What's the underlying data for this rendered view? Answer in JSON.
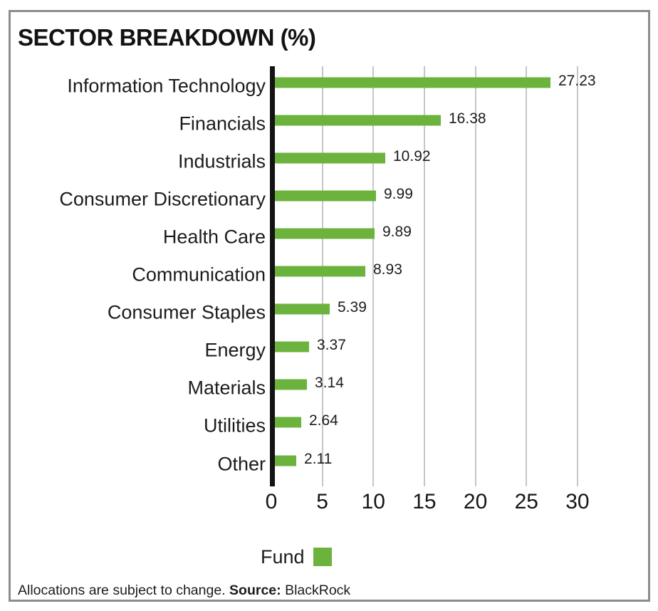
{
  "chart_data": {
    "type": "bar",
    "orientation": "horizontal",
    "title": "SECTOR BREAKDOWN (%)",
    "categories": [
      "Information Technology",
      "Financials",
      "Industrials",
      "Consumer Discretionary",
      "Health Care",
      "Communication",
      "Consumer Staples",
      "Energy",
      "Materials",
      "Utilities",
      "Other"
    ],
    "values": [
      27.23,
      16.38,
      10.92,
      9.99,
      9.89,
      8.93,
      5.39,
      3.37,
      3.14,
      2.64,
      2.11
    ],
    "value_labels": [
      "27.23",
      "16.38",
      "10.92",
      "9.99",
      "9.89",
      "8.93",
      "5.39",
      "3.37",
      "3.14",
      "2.64",
      "2.11"
    ],
    "xticks": [
      0,
      5,
      10,
      15,
      20,
      25,
      30
    ],
    "xtick_labels": [
      "0",
      "5",
      "10",
      "15",
      "20",
      "25",
      "30"
    ],
    "xlim": [
      0,
      30
    ],
    "grid": true,
    "legend_position": "bottom",
    "series_name": "Fund",
    "colors": {
      "bar": "#6cb33e",
      "gridline": "#c6c6c6",
      "axis": "#131313",
      "frame_border": "#8d8d90",
      "text": "#1c1c1c"
    }
  },
  "legend": {
    "label": "Fund"
  },
  "footer": {
    "text": "Allocations are subject to change.",
    "source_label": "Source:",
    "source_value": "BlackRock"
  }
}
